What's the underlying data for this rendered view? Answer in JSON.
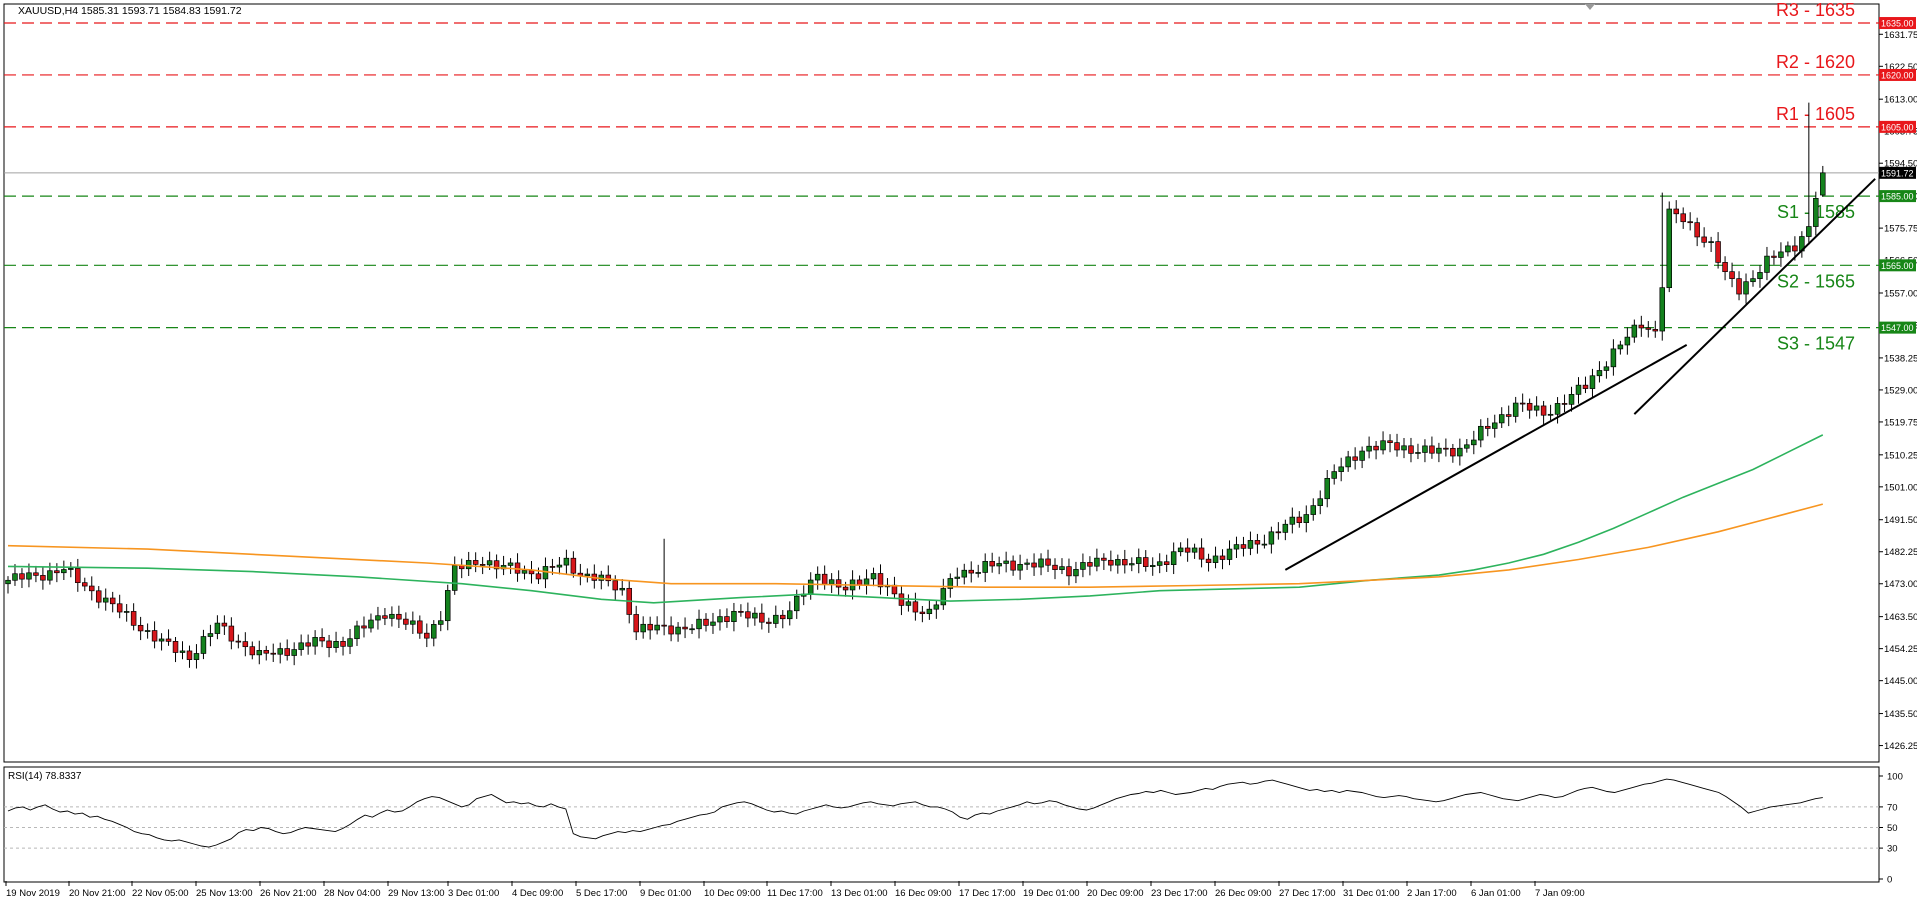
{
  "header": {
    "symbol_line": "XAUUSD,H4  1585.31 1593.71 1584.83 1591.72"
  },
  "chart_data": {
    "type": "candlestick",
    "symbol": "XAUUSD",
    "timeframe": "H4",
    "ohlc": {
      "open": 1585.31,
      "high": 1593.71,
      "low": 1584.83,
      "close": 1591.72
    },
    "current_price": 1591.72,
    "ylim": [
      1421.5,
      1640.5
    ],
    "y_ticks": [
      "1631.75",
      "1622.50",
      "1613.00",
      "1603.75",
      "1594.50",
      "1585.00",
      "1575.75",
      "1566.50",
      "1557.00",
      "1547.75",
      "1538.25",
      "1529.00",
      "1519.75",
      "1510.25",
      "1501.00",
      "1491.50",
      "1482.25",
      "1473.00",
      "1463.50",
      "1454.25",
      "1445.00",
      "1435.50",
      "1426.25"
    ],
    "x_labels": [
      "19 Nov 2019",
      "20 Nov 21:00",
      "22 Nov 05:00",
      "25 Nov 13:00",
      "26 Nov 21:00",
      "28 Nov 04:00",
      "29 Nov 13:00",
      "3 Dec 01:00",
      "4 Dec 09:00",
      "5 Dec 17:00",
      "9 Dec 01:00",
      "10 Dec 09:00",
      "11 Dec 17:00",
      "13 Dec 01:00",
      "16 Dec 09:00",
      "17 Dec 17:00",
      "19 Dec 01:00",
      "20 Dec 09:00",
      "23 Dec 17:00",
      "26 Dec 09:00",
      "27 Dec 17:00",
      "31 Dec 01:00",
      "2 Jan 17:00",
      "6 Jan 01:00",
      "7 Jan 09:00"
    ],
    "levels": [
      {
        "label": "R3 - 1635",
        "price_tag": "1635.00",
        "value": 1635,
        "type": "resistance"
      },
      {
        "label": "R2 - 1620",
        "price_tag": "1620.00",
        "value": 1620,
        "type": "resistance"
      },
      {
        "label": "R1 - 1605",
        "price_tag": "1605.00",
        "value": 1605,
        "type": "resistance"
      },
      {
        "label": "S1 - 1585",
        "price_tag": "1585.00",
        "value": 1585,
        "type": "support"
      },
      {
        "label": "S2 - 1565",
        "price_tag": "1565.00",
        "value": 1565,
        "type": "support"
      },
      {
        "label": "S3 - 1547",
        "price_tag": "1547.00",
        "value": 1547,
        "type": "support"
      }
    ],
    "moving_averages": [
      {
        "color": "#2db35d",
        "points": [
          [
            0,
            1478
          ],
          [
            40,
            1477.5
          ],
          [
            70,
            1476.5
          ],
          [
            100,
            1475
          ],
          [
            130,
            1473
          ],
          [
            150,
            1471
          ],
          [
            170,
            1468.5
          ],
          [
            185,
            1467.5
          ],
          [
            210,
            1469
          ],
          [
            230,
            1470
          ],
          [
            250,
            1469
          ],
          [
            270,
            1468
          ],
          [
            290,
            1468.5
          ],
          [
            310,
            1469.5
          ],
          [
            330,
            1471
          ],
          [
            350,
            1471.5
          ],
          [
            370,
            1472
          ],
          [
            390,
            1474
          ],
          [
            410,
            1475.5
          ],
          [
            420,
            1477
          ],
          [
            430,
            1479
          ],
          [
            440,
            1481.5
          ],
          [
            450,
            1485
          ],
          [
            460,
            1489
          ],
          [
            470,
            1493.5
          ],
          [
            480,
            1498
          ],
          [
            490,
            1502
          ],
          [
            500,
            1506
          ],
          [
            510,
            1511
          ],
          [
            520,
            1516
          ]
        ]
      },
      {
        "color": "#f79520",
        "points": [
          [
            0,
            1484
          ],
          [
            40,
            1483
          ],
          [
            80,
            1481
          ],
          [
            120,
            1479
          ],
          [
            150,
            1477
          ],
          [
            170,
            1474.5
          ],
          [
            190,
            1473
          ],
          [
            220,
            1473
          ],
          [
            250,
            1472.5
          ],
          [
            280,
            1472
          ],
          [
            310,
            1472
          ],
          [
            340,
            1472.5
          ],
          [
            370,
            1473
          ],
          [
            390,
            1474
          ],
          [
            410,
            1475
          ],
          [
            430,
            1477
          ],
          [
            450,
            1480
          ],
          [
            470,
            1483.5
          ],
          [
            490,
            1488
          ],
          [
            505,
            1492
          ],
          [
            520,
            1496
          ]
        ]
      }
    ],
    "trendlines": [
      {
        "from": [
          366,
          1477
        ],
        "to": [
          481,
          1542
        ]
      },
      {
        "from": [
          466,
          1522
        ],
        "to": [
          535,
          1590
        ]
      }
    ],
    "rsi": {
      "label": "RSI(14) 78.8337",
      "ylim": [
        0,
        100
      ],
      "y_ticks": [
        "100",
        "70",
        "50",
        "30",
        "0"
      ],
      "levels": [
        70,
        50,
        30
      ],
      "values": [
        66,
        69,
        70,
        67,
        70,
        72,
        68,
        65,
        66,
        63,
        64,
        60,
        61,
        58,
        56,
        53,
        50,
        46,
        44,
        43,
        40,
        38,
        37,
        38,
        36,
        34,
        32,
        31,
        33,
        36,
        39,
        45,
        48,
        47,
        50,
        49,
        46,
        44,
        45,
        48,
        50,
        49,
        48,
        47,
        46,
        49,
        53,
        58,
        62,
        60,
        64,
        67,
        65,
        66,
        70,
        75,
        78,
        80,
        79,
        76,
        73,
        70,
        72,
        78,
        80,
        82,
        78,
        74,
        75,
        73,
        74,
        71,
        70,
        73,
        70,
        68,
        44,
        41,
        40,
        39,
        42,
        44,
        46,
        45,
        47,
        46,
        48,
        50,
        52,
        53,
        56,
        58,
        60,
        62,
        63,
        65,
        70,
        72,
        74,
        75,
        73,
        70,
        67,
        65,
        66,
        64,
        63,
        66,
        68,
        70,
        72,
        70,
        69,
        70,
        72,
        74,
        75,
        73,
        72,
        71,
        73,
        74,
        75,
        72,
        70,
        70,
        68,
        65,
        60,
        58,
        62,
        64,
        63,
        66,
        68,
        70,
        72,
        75,
        73,
        74,
        76,
        75,
        72,
        70,
        68,
        67,
        69,
        72,
        75,
        78,
        80,
        82,
        83,
        85,
        84,
        86,
        84,
        82,
        83,
        84,
        86,
        88,
        87,
        90,
        92,
        93,
        94,
        92,
        93,
        95,
        96,
        94,
        92,
        90,
        88,
        86,
        87,
        85,
        86,
        84,
        86,
        85,
        84,
        82,
        80,
        79,
        80,
        81,
        80,
        78,
        77,
        76,
        75,
        76,
        78,
        80,
        82,
        83,
        84,
        82,
        80,
        78,
        77,
        76,
        78,
        80,
        82,
        81,
        79,
        80,
        83,
        86,
        88,
        89,
        87,
        85,
        84,
        86,
        88,
        90,
        92,
        93,
        95,
        97,
        96,
        94,
        92,
        90,
        88,
        86,
        84,
        80,
        75,
        70,
        64,
        66,
        68,
        70,
        71,
        72,
        73,
        74,
        76,
        78,
        79
      ]
    }
  }
}
